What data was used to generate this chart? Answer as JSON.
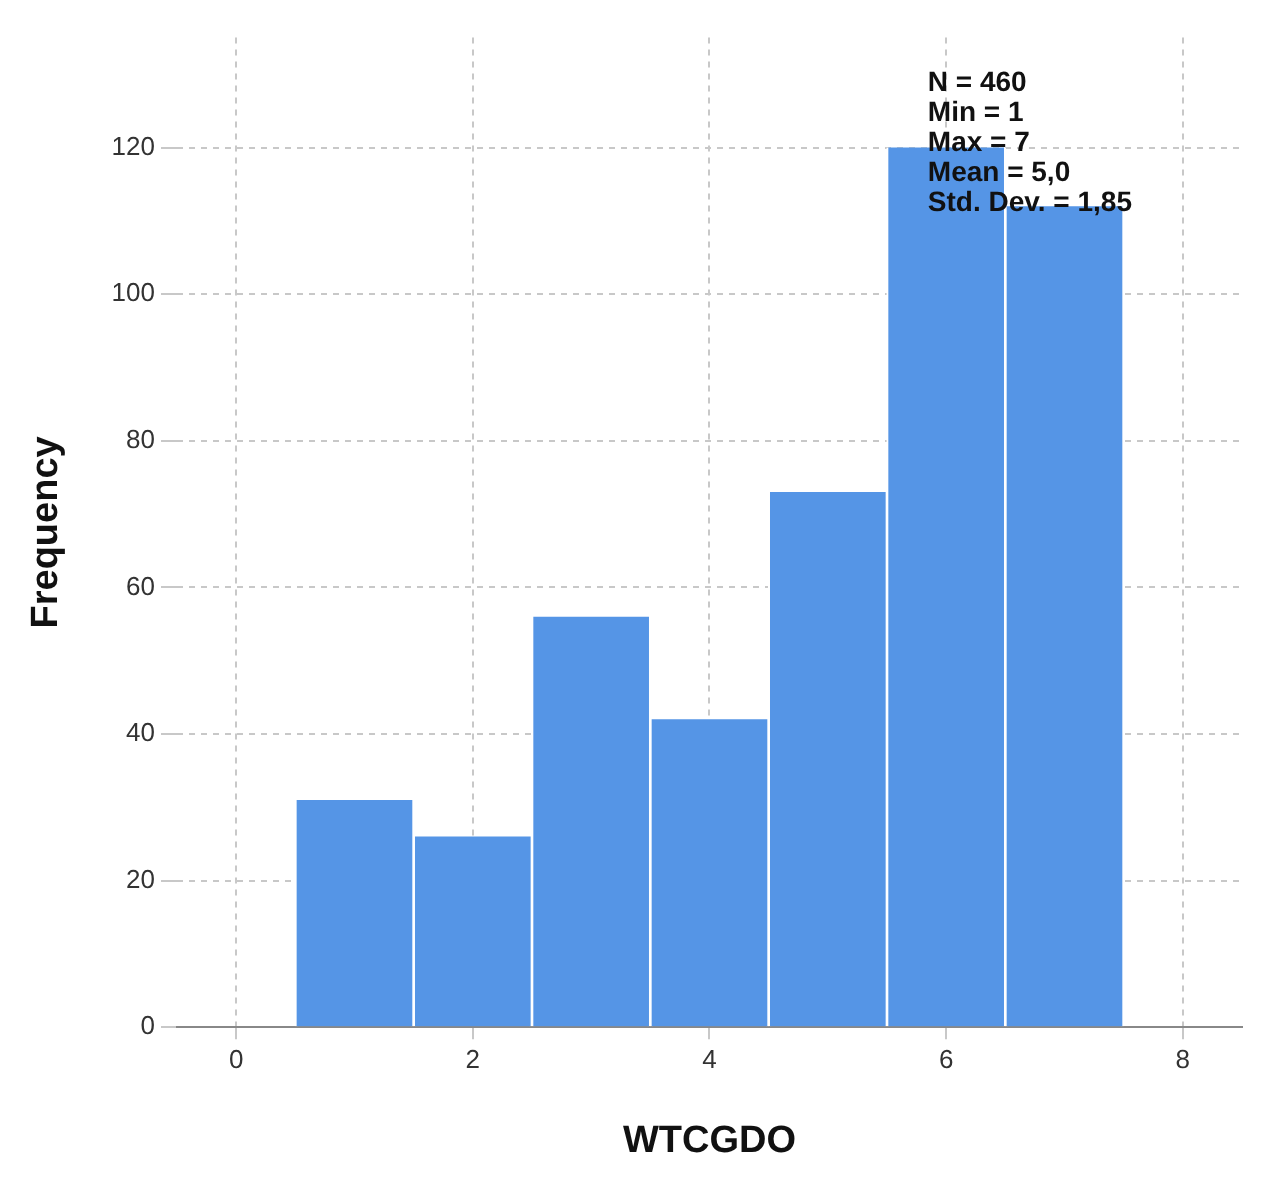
{
  "chart_data": {
    "type": "histogram",
    "xlabel": "WTCGDO",
    "ylabel": "Frequency",
    "bins": [
      0.5,
      1.5,
      2.5,
      3.5,
      4.5,
      5.5,
      6.5,
      7.5
    ],
    "values": [
      31,
      26,
      56,
      42,
      73,
      120,
      112
    ],
    "color": "#5595e6",
    "xlim": [
      -0.5,
      8.5
    ],
    "xticks": [
      0,
      2,
      4,
      6,
      8
    ],
    "ylim": [
      0,
      135
    ],
    "yticks": [
      0,
      20,
      40,
      60,
      80,
      100,
      120
    ],
    "grid": true,
    "legend": false,
    "annotations": [
      "N = 460",
      "Min = 1",
      "Max = 7",
      "Mean = 5,0",
      "Std. Dev. = 1,85"
    ]
  }
}
